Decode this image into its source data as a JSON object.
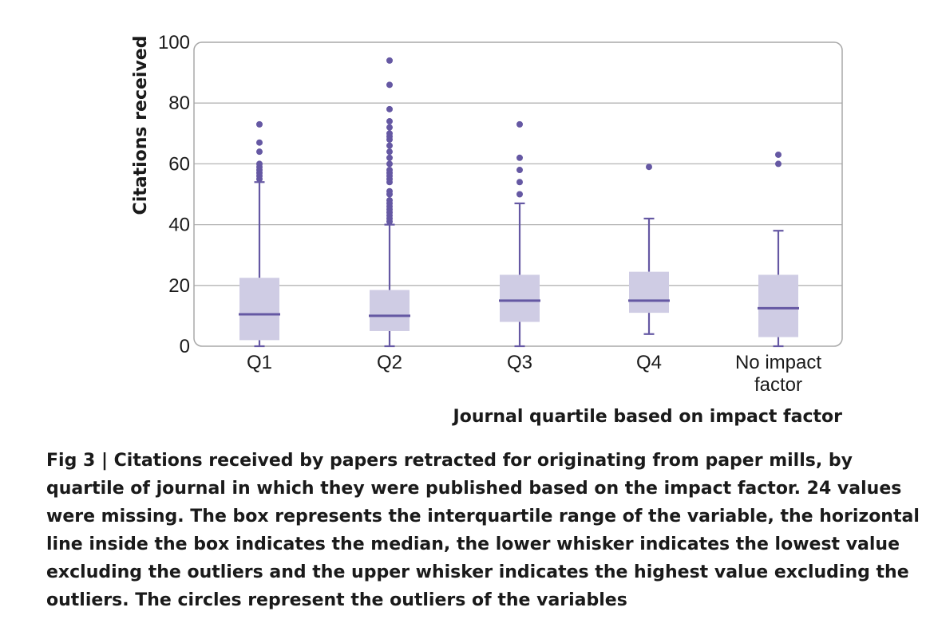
{
  "chart_data": {
    "type": "boxplot",
    "xlabel": "Journal quartile based on impact factor",
    "ylabel": "Citations received",
    "ylim": [
      0,
      100
    ],
    "yticks": [
      0,
      20,
      40,
      60,
      80,
      100
    ],
    "grid": true,
    "categories": [
      "Q1",
      "Q2",
      "Q3",
      "Q4",
      "No impact factor"
    ],
    "category_labels": [
      [
        "Q1"
      ],
      [
        "Q2"
      ],
      [
        "Q3"
      ],
      [
        "Q4"
      ],
      [
        "No impact",
        "factor"
      ]
    ],
    "boxes": [
      {
        "category": "Q1",
        "whisker_low": 0,
        "q1": 2,
        "median": 10.5,
        "q3": 22.5,
        "whisker_high": 54,
        "outliers": [
          55,
          56,
          57,
          58,
          59,
          60,
          64,
          67,
          73
        ]
      },
      {
        "category": "Q2",
        "whisker_low": 0,
        "q1": 5,
        "median": 10,
        "q3": 18.5,
        "whisker_high": 40,
        "outliers": [
          41,
          42,
          43,
          44,
          45,
          46,
          47,
          48,
          50,
          51,
          54,
          55,
          56,
          57,
          58,
          60,
          62,
          64,
          66,
          68,
          69,
          70,
          72,
          74,
          78,
          86,
          94
        ]
      },
      {
        "category": "Q3",
        "whisker_low": 0,
        "q1": 8,
        "median": 15,
        "q3": 23.5,
        "whisker_high": 47,
        "outliers": [
          50,
          54,
          58,
          62,
          73
        ]
      },
      {
        "category": "Q4",
        "whisker_low": 4,
        "q1": 11,
        "median": 15,
        "q3": 24.5,
        "whisker_high": 42,
        "outliers": [
          59
        ]
      },
      {
        "category": "No impact factor",
        "whisker_low": 0,
        "q1": 3,
        "median": 12.5,
        "q3": 23.5,
        "whisker_high": 38,
        "outliers": [
          60,
          63
        ]
      }
    ],
    "colors": {
      "box_fill": "#cfcce4",
      "line": "#6558a3",
      "grid": "#b5b5b5",
      "frame": "#a8a8a8"
    }
  },
  "caption": "Fig 3 | Citations received by papers retracted for originating from paper mills, by quartile of journal in which they were published based on the impact factor. 24 values were missing. The box represents the interquartile range of the variable, the horizontal line inside the box indicates the median, the lower whisker indicates the lowest value excluding the outliers and the upper whisker indicates the highest value excluding the outliers. The circles represent the outliers of the variables"
}
